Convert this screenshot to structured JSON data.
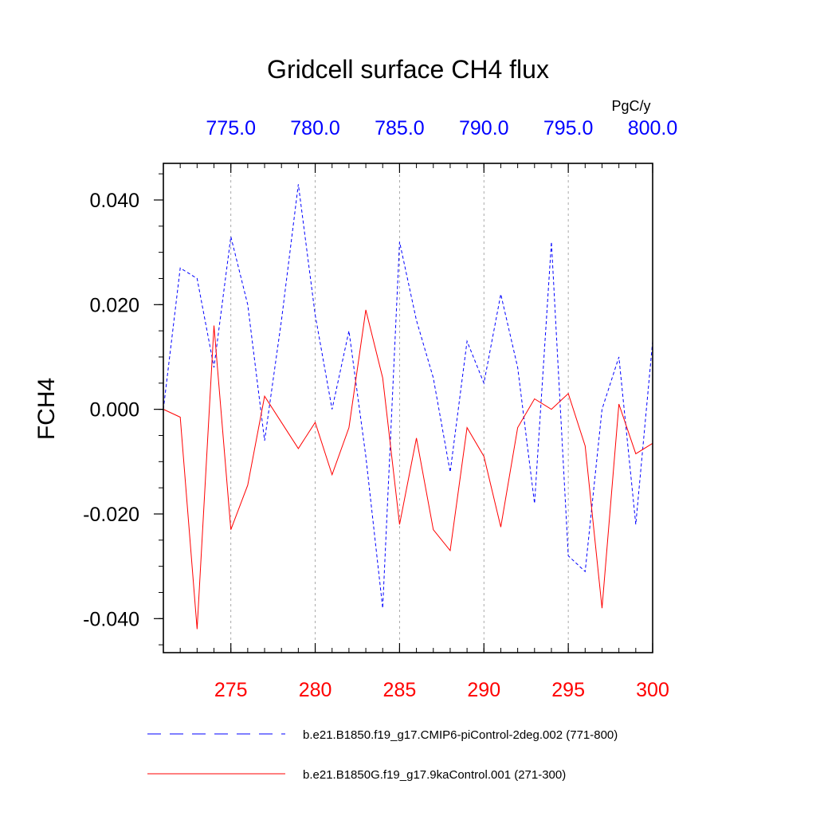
{
  "chart_data": {
    "type": "line",
    "title": "Gridcell surface CH4 flux",
    "ylabel": "FCH4",
    "units": "PgC/y",
    "ylim": [
      -0.0465,
      0.047
    ],
    "yticks": [
      {
        "value": 0.04,
        "label": "0.040"
      },
      {
        "value": 0.02,
        "label": "0.020"
      },
      {
        "value": 0.0,
        "label": "0.000"
      },
      {
        "value": -0.02,
        "label": "-0.020"
      },
      {
        "value": -0.04,
        "label": "-0.040"
      }
    ],
    "bottom_axis": {
      "xlim": [
        271,
        300
      ],
      "color": "#ff0000",
      "ticks": [
        {
          "value": 275,
          "label": "275"
        },
        {
          "value": 280,
          "label": "280"
        },
        {
          "value": 285,
          "label": "285"
        },
        {
          "value": 290,
          "label": "290"
        },
        {
          "value": 295,
          "label": "295"
        },
        {
          "value": 300,
          "label": "300"
        }
      ]
    },
    "top_axis": {
      "xlim": [
        771,
        800
      ],
      "color": "#0000ff",
      "ticks": [
        {
          "value": 775,
          "label": "775.0"
        },
        {
          "value": 780,
          "label": "780.0"
        },
        {
          "value": 785,
          "label": "785.0"
        },
        {
          "value": 790,
          "label": "790.0"
        },
        {
          "value": 795,
          "label": "795.0"
        },
        {
          "value": 800,
          "label": "800.0"
        }
      ]
    },
    "series": [
      {
        "name": "b.e21.B1850.f19_g17.CMIP6-piControl-2deg.002 (771-800)",
        "axis": "top",
        "color": "#0000ff",
        "dash": "dashed",
        "x": [
          771,
          772,
          773,
          774,
          775,
          776,
          777,
          778,
          779,
          780,
          781,
          782,
          783,
          784,
          785,
          786,
          787,
          788,
          789,
          790,
          791,
          792,
          793,
          794,
          795,
          796,
          797,
          798,
          799,
          800
        ],
        "values": [
          0.0,
          0.027,
          0.025,
          0.008,
          0.033,
          0.02,
          -0.006,
          0.017,
          0.043,
          0.018,
          0.0,
          0.015,
          -0.009,
          -0.038,
          0.032,
          0.017,
          0.006,
          -0.012,
          0.013,
          0.005,
          0.022,
          0.008,
          -0.018,
          0.032,
          -0.028,
          -0.031,
          0.0,
          0.01,
          -0.022,
          0.013
        ]
      },
      {
        "name": "b.e21.B1850G.f19_g17.9kaControl.001 (271-300)",
        "axis": "bottom",
        "color": "#ff0000",
        "dash": "solid",
        "x": [
          271,
          272,
          273,
          274,
          275,
          276,
          277,
          278,
          279,
          280,
          281,
          282,
          283,
          284,
          285,
          286,
          287,
          288,
          289,
          290,
          291,
          292,
          293,
          294,
          295,
          296,
          297,
          298,
          299,
          300
        ],
        "values": [
          0.0,
          -0.0015,
          -0.042,
          0.016,
          -0.023,
          -0.0145,
          0.0025,
          -0.0025,
          -0.0075,
          -0.0025,
          -0.0125,
          -0.0035,
          0.019,
          0.006,
          -0.022,
          -0.0055,
          -0.023,
          -0.027,
          -0.0035,
          -0.009,
          -0.0225,
          -0.0035,
          0.002,
          0.0,
          0.003,
          -0.007,
          -0.038,
          0.001,
          -0.0085,
          -0.0065
        ]
      }
    ],
    "legend": [
      {
        "label": "b.e21.B1850.f19_g17.CMIP6-piControl-2deg.002 (771-800)",
        "color": "#0000ff",
        "dash": "dashed"
      },
      {
        "label": "b.e21.B1850G.f19_g17.9kaControl.001 (271-300)",
        "color": "#ff0000",
        "dash": "solid"
      }
    ],
    "grid": "vertical-dotted-at-major-ticks",
    "legend_position": "bottom"
  }
}
